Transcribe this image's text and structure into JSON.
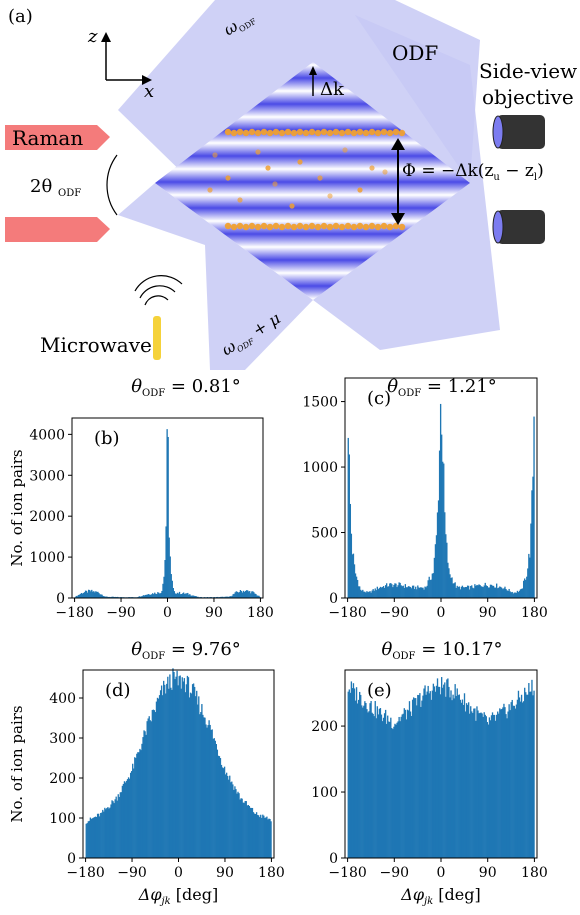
{
  "figure": {
    "schematic": {
      "panel_label": "(a)",
      "axis_z": "z",
      "axis_x": "x",
      "beam_top": "ω",
      "beam_top_sub": "ODF",
      "odf_label": "ODF",
      "side_view_1": "Side-view",
      "side_view_2": "objective",
      "raman_label": "Raman",
      "angle_label": "2θ",
      "angle_sub": "ODF",
      "delta_k": "Δk",
      "phase_label": "Φ = −Δk(z",
      "phase_zu": "u",
      "phase_mid": " − z",
      "phase_zl": "l",
      "phase_end": ")",
      "beam_bottom": "ω",
      "beam_bottom_sub": "ODF",
      "beam_bottom_tail": " + μ",
      "microwave_label": "Microwave",
      "colors": {
        "beam": "#c7c9f5",
        "raman": "#f47b7b",
        "ion": "#f0a030",
        "grating": "#5050e8",
        "antenna": "#f5d23a",
        "objective": "#333333",
        "objective_lens": "#8080f0"
      }
    }
  },
  "chart_data": [
    {
      "type": "bar",
      "panel_label": "(b)",
      "title_prefix": "θ",
      "title_sub": "ODF",
      "title_value": " = 0.81°",
      "ylabel": "No. of ion pairs",
      "xlabel": "",
      "xlim": [
        -185,
        185
      ],
      "ylim": [
        0,
        4400
      ],
      "xticks": [
        "−180",
        "−90",
        "0",
        "90",
        "180"
      ],
      "xtick_values": [
        -180,
        -90,
        0,
        90,
        180
      ],
      "yticks": [
        "0",
        "1000",
        "2000",
        "3000",
        "4000"
      ],
      "ytick_values": [
        0,
        1000,
        2000,
        3000,
        4000
      ],
      "bin_width": 2,
      "profile": [
        {
          "x": -180,
          "y": 20
        },
        {
          "x": -165,
          "y": 130
        },
        {
          "x": -150,
          "y": 170
        },
        {
          "x": -135,
          "y": 140
        },
        {
          "x": -120,
          "y": 30
        },
        {
          "x": -90,
          "y": 20
        },
        {
          "x": -60,
          "y": 20
        },
        {
          "x": -40,
          "y": 90
        },
        {
          "x": -25,
          "y": 120
        },
        {
          "x": -12,
          "y": 140
        },
        {
          "x": -6,
          "y": 600
        },
        {
          "x": -3,
          "y": 1800
        },
        {
          "x": 0,
          "y": 4200
        },
        {
          "x": 3,
          "y": 1800
        },
        {
          "x": 6,
          "y": 600
        },
        {
          "x": 12,
          "y": 140
        },
        {
          "x": 25,
          "y": 120
        },
        {
          "x": 40,
          "y": 100
        },
        {
          "x": 60,
          "y": 20
        },
        {
          "x": 90,
          "y": 20
        },
        {
          "x": 120,
          "y": 30
        },
        {
          "x": 135,
          "y": 150
        },
        {
          "x": 150,
          "y": 180
        },
        {
          "x": 165,
          "y": 140
        },
        {
          "x": 180,
          "y": 20
        }
      ],
      "color": "#1f77b4"
    },
    {
      "type": "bar",
      "panel_label": "(c)",
      "title_prefix": "θ",
      "title_sub": "ODF",
      "title_value": " = 1.21°",
      "ylabel": "",
      "xlabel": "",
      "xlim": [
        -185,
        185
      ],
      "ylim": [
        0,
        1680
      ],
      "xticks": [
        "−180",
        "−90",
        "0",
        "90",
        "180"
      ],
      "xtick_values": [
        -180,
        -90,
        0,
        90,
        180
      ],
      "yticks": [
        "0",
        "500",
        "1000",
        "1500"
      ],
      "ytick_values": [
        0,
        500,
        1000,
        1500
      ],
      "bin_width": 2,
      "profile": [
        {
          "x": -180,
          "y": 1600
        },
        {
          "x": -176,
          "y": 800
        },
        {
          "x": -172,
          "y": 400
        },
        {
          "x": -166,
          "y": 200
        },
        {
          "x": -155,
          "y": 60
        },
        {
          "x": -140,
          "y": 40
        },
        {
          "x": -120,
          "y": 80
        },
        {
          "x": -100,
          "y": 100
        },
        {
          "x": -80,
          "y": 100
        },
        {
          "x": -55,
          "y": 80
        },
        {
          "x": -30,
          "y": 80
        },
        {
          "x": -15,
          "y": 200
        },
        {
          "x": -8,
          "y": 500
        },
        {
          "x": -4,
          "y": 1000
        },
        {
          "x": 0,
          "y": 1580
        },
        {
          "x": 4,
          "y": 1000
        },
        {
          "x": 8,
          "y": 500
        },
        {
          "x": 15,
          "y": 200
        },
        {
          "x": 30,
          "y": 80
        },
        {
          "x": 55,
          "y": 80
        },
        {
          "x": 80,
          "y": 100
        },
        {
          "x": 100,
          "y": 100
        },
        {
          "x": 120,
          "y": 80
        },
        {
          "x": 140,
          "y": 40
        },
        {
          "x": 155,
          "y": 60
        },
        {
          "x": 166,
          "y": 200
        },
        {
          "x": 172,
          "y": 400
        },
        {
          "x": 176,
          "y": 800
        },
        {
          "x": 180,
          "y": 1600
        }
      ],
      "color": "#1f77b4"
    },
    {
      "type": "bar",
      "panel_label": "(d)",
      "title_prefix": "θ",
      "title_sub": "ODF",
      "title_value": " = 9.76°",
      "ylabel": "No. of ion pairs",
      "xlabel": "Δφ",
      "xlabel_sub": "jk",
      "xlabel_tail": " [deg]",
      "xlim": [
        -185,
        185
      ],
      "ylim": [
        0,
        470
      ],
      "xticks": [
        "−180",
        "−90",
        "0",
        "90",
        "180"
      ],
      "xtick_values": [
        -180,
        -90,
        0,
        90,
        180
      ],
      "yticks": [
        "0",
        "100",
        "200",
        "300",
        "400"
      ],
      "ytick_values": [
        0,
        100,
        200,
        300,
        400
      ],
      "bin_width": 2,
      "profile": [
        {
          "x": -180,
          "y": 90
        },
        {
          "x": -150,
          "y": 110
        },
        {
          "x": -120,
          "y": 150
        },
        {
          "x": -90,
          "y": 220
        },
        {
          "x": -60,
          "y": 330
        },
        {
          "x": -30,
          "y": 420
        },
        {
          "x": -10,
          "y": 450
        },
        {
          "x": 0,
          "y": 440
        },
        {
          "x": 10,
          "y": 445
        },
        {
          "x": 30,
          "y": 410
        },
        {
          "x": 60,
          "y": 330
        },
        {
          "x": 90,
          "y": 220
        },
        {
          "x": 120,
          "y": 150
        },
        {
          "x": 150,
          "y": 110
        },
        {
          "x": 180,
          "y": 95
        }
      ],
      "color": "#1f77b4"
    },
    {
      "type": "bar",
      "panel_label": "(e)",
      "title_prefix": "θ",
      "title_sub": "ODF",
      "title_value": " = 10.17°",
      "ylabel": "",
      "xlabel": "Δφ",
      "xlabel_sub": "jk",
      "xlabel_tail": " [deg]",
      "xlim": [
        -185,
        185
      ],
      "ylim": [
        0,
        285
      ],
      "xticks": [
        "−180",
        "−90",
        "0",
        "90",
        "180"
      ],
      "xtick_values": [
        -180,
        -90,
        0,
        90,
        180
      ],
      "yticks": [
        "0",
        "100",
        "200"
      ],
      "ytick_values": [
        0,
        100,
        200
      ],
      "bin_width": 2,
      "profile": [
        {
          "x": -180,
          "y": 260
        },
        {
          "x": -150,
          "y": 240
        },
        {
          "x": -120,
          "y": 220
        },
        {
          "x": -90,
          "y": 205
        },
        {
          "x": -60,
          "y": 225
        },
        {
          "x": -30,
          "y": 250
        },
        {
          "x": 0,
          "y": 262
        },
        {
          "x": 30,
          "y": 250
        },
        {
          "x": 60,
          "y": 225
        },
        {
          "x": 90,
          "y": 205
        },
        {
          "x": 120,
          "y": 220
        },
        {
          "x": 150,
          "y": 240
        },
        {
          "x": 180,
          "y": 262
        }
      ],
      "color": "#1f77b4"
    }
  ]
}
